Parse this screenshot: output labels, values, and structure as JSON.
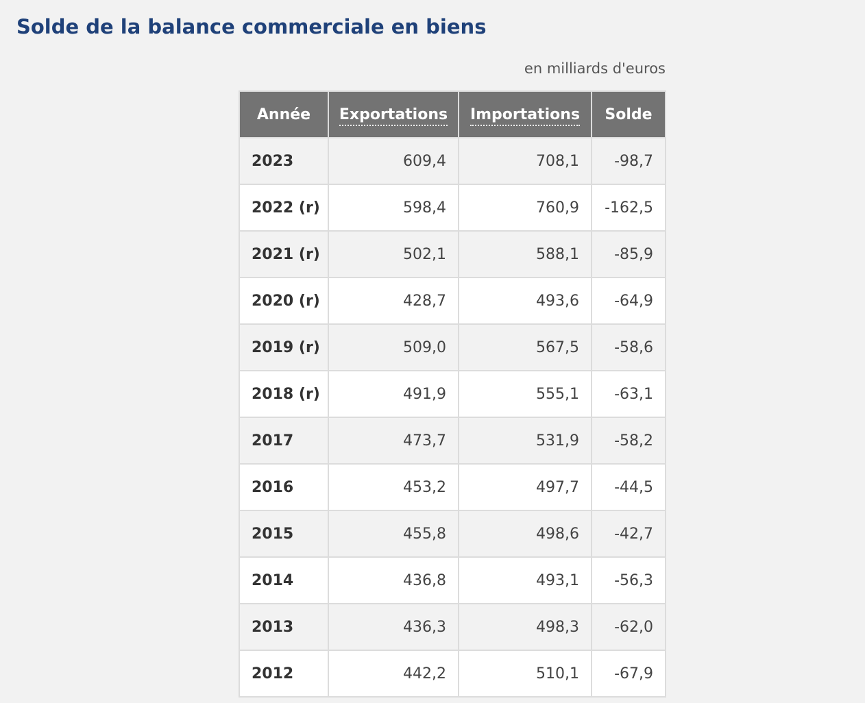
{
  "page": {
    "title": "Solde de la balance commerciale en biens",
    "unit": "en milliards d'euros"
  },
  "table": {
    "headers": {
      "year": "Année",
      "exports": "Exportations",
      "imports": "Importations",
      "balance": "Solde"
    },
    "rows": [
      {
        "year": "2023",
        "exports": "609,4",
        "imports": "708,1",
        "balance": "-98,7"
      },
      {
        "year": "2022 (r)",
        "exports": "598,4",
        "imports": "760,9",
        "balance": "-162,5"
      },
      {
        "year": "2021 (r)",
        "exports": "502,1",
        "imports": "588,1",
        "balance": "-85,9"
      },
      {
        "year": "2020 (r)",
        "exports": "428,7",
        "imports": "493,6",
        "balance": "-64,9"
      },
      {
        "year": "2019 (r)",
        "exports": "509,0",
        "imports": "567,5",
        "balance": "-58,6"
      },
      {
        "year": "2018 (r)",
        "exports": "491,9",
        "imports": "555,1",
        "balance": "-63,1"
      },
      {
        "year": "2017",
        "exports": "473,7",
        "imports": "531,9",
        "balance": "-58,2"
      },
      {
        "year": "2016",
        "exports": "453,2",
        "imports": "497,7",
        "balance": "-44,5"
      },
      {
        "year": "2015",
        "exports": "455,8",
        "imports": "498,6",
        "balance": "-42,7"
      },
      {
        "year": "2014",
        "exports": "436,8",
        "imports": "493,1",
        "balance": "-56,3"
      },
      {
        "year": "2013",
        "exports": "436,3",
        "imports": "498,3",
        "balance": "-62,0"
      },
      {
        "year": "2012",
        "exports": "442,2",
        "imports": "510,1",
        "balance": "-67,9"
      }
    ]
  }
}
